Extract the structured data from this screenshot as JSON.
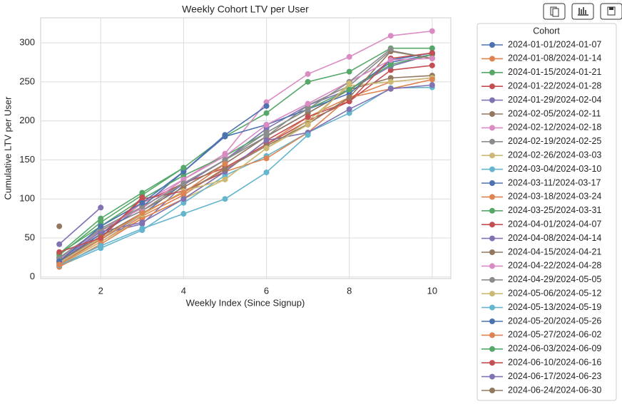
{
  "chart_data": {
    "type": "line",
    "title": "Weekly Cohort LTV per User",
    "x_label": "Weekly Index (Since Signup)",
    "y_label": "Cumulative LTV per User",
    "legend_title": "Cohort",
    "legend_position": "outside right",
    "grid": true,
    "x": [
      1,
      2,
      3,
      4,
      5,
      6,
      7,
      8,
      9,
      10
    ],
    "xlim": [
      0.55,
      10.45
    ],
    "xticks": [
      2,
      4,
      6,
      8,
      10
    ],
    "ylim": [
      -2,
      332
    ],
    "yticks": [
      0,
      50,
      100,
      150,
      200,
      250,
      300
    ],
    "series": [
      {
        "name": "2024-01-01/2024-01-07",
        "color": "#4c72b0",
        "values": [
          18,
          48,
          80,
          120,
          150,
          180,
          210,
          240,
          275,
          285
        ]
      },
      {
        "name": "2024-01-08/2024-01-14",
        "color": "#dd8452",
        "values": [
          15,
          45,
          78,
          105,
          140,
          170,
          205,
          230,
          250,
          255
        ]
      },
      {
        "name": "2024-01-15/2024-01-21",
        "color": "#55a868",
        "values": [
          28,
          70,
          105,
          140,
          180,
          210,
          250,
          263,
          293,
          293
        ]
      },
      {
        "name": "2024-01-22/2024-01-28",
        "color": "#c44e52",
        "values": [
          20,
          55,
          95,
          120,
          140,
          170,
          200,
          225,
          265,
          271
        ]
      },
      {
        "name": "2024-01-29/2024-02-04",
        "color": "#8172b3",
        "values": [
          22,
          55,
          68,
          118,
          150,
          190,
          220,
          240,
          270,
          285
        ]
      },
      {
        "name": "2024-02-05/2024-02-11",
        "color": "#937860",
        "values": [
          25,
          60,
          85,
          115,
          145,
          180,
          210,
          240,
          255,
          258
        ]
      },
      {
        "name": "2024-02-12/2024-02-18",
        "color": "#da8bc3",
        "values": [
          20,
          58,
          95,
          125,
          158,
          224,
          260,
          282,
          309,
          315
        ]
      },
      {
        "name": "2024-02-19/2024-02-25",
        "color": "#8c8c8c",
        "values": [
          24,
          60,
          85,
          120,
          150,
          180,
          220,
          245,
          290,
          280
        ]
      },
      {
        "name": "2024-02-26/2024-03-03",
        "color": "#ccb974",
        "values": [
          16,
          45,
          75,
          100,
          125,
          165,
          200,
          245,
          250,
          255
        ]
      },
      {
        "name": "2024-03-04/2024-03-10",
        "color": "#64b5cd",
        "values": [
          14,
          37,
          60,
          95,
          130,
          155,
          185,
          210,
          242,
          243
        ]
      },
      {
        "name": "2024-03-11/2024-03-17",
        "color": "#4c72b0",
        "values": [
          20,
          55,
          90,
          135,
          180,
          195,
          215,
          235,
          278,
          287
        ]
      },
      {
        "name": "2024-03-18/2024-03-24",
        "color": "#dd8452",
        "values": [
          13,
          42,
          75,
          100,
          135,
          152,
          185,
          230,
          241,
          253
        ]
      },
      {
        "name": "2024-03-25/2024-03-31",
        "color": "#55a868",
        "values": [
          30,
          65,
          100,
          130,
          155,
          185,
          215,
          240,
          272,
          285
        ]
      },
      {
        "name": "2024-04-01/2024-04-07",
        "color": "#c44e52",
        "values": [
          18,
          50,
          100,
          110,
          135,
          175,
          205,
          225,
          280,
          287
        ]
      },
      {
        "name": "2024-04-08/2024-04-14",
        "color": "#8172b3",
        "values": [
          22,
          58,
          70,
          100,
          135,
          175,
          185,
          215,
          241,
          246
        ]
      },
      {
        "name": "2024-04-15/2024-04-21",
        "color": "#937860",
        "values": [
          20,
          52,
          82,
          108,
          138,
          168,
          196,
          230,
          289,
          280
        ]
      },
      {
        "name": "2024-04-22/2024-04-28",
        "color": "#da8bc3",
        "values": [
          22,
          62,
          88,
          125,
          155,
          195,
          222,
          250,
          278,
          280
        ]
      },
      {
        "name": "2024-04-29/2024-05-05",
        "color": "#8c8c8c",
        "values": [
          25,
          62,
          90,
          120,
          150,
          185,
          215,
          250,
          292,
          null
        ]
      },
      {
        "name": "2024-05-06/2024-05-12",
        "color": "#ccb974",
        "values": [
          18,
          50,
          80,
          110,
          125,
          165,
          195,
          248,
          null,
          null
        ]
      },
      {
        "name": "2024-05-13/2024-05-19",
        "color": "#64b5cd",
        "values": [
          15,
          40,
          62,
          81,
          100,
          134,
          182,
          null,
          null,
          null
        ]
      },
      {
        "name": "2024-05-20/2024-05-26",
        "color": "#4c72b0",
        "values": [
          20,
          65,
          95,
          135,
          182,
          219,
          null,
          null,
          null,
          null
        ]
      },
      {
        "name": "2024-05-27/2024-06-02",
        "color": "#dd8452",
        "values": [
          16,
          48,
          82,
          108,
          145,
          null,
          null,
          null,
          null,
          null
        ]
      },
      {
        "name": "2024-06-03/2024-06-09",
        "color": "#55a868",
        "values": [
          30,
          75,
          108,
          140,
          null,
          null,
          null,
          null,
          null,
          null
        ]
      },
      {
        "name": "2024-06-10/2024-06-16",
        "color": "#c44e52",
        "values": [
          32,
          50,
          102,
          null,
          null,
          null,
          null,
          null,
          null,
          null
        ]
      },
      {
        "name": "2024-06-17/2024-06-23",
        "color": "#8172b3",
        "values": [
          42,
          89,
          null,
          null,
          null,
          null,
          null,
          null,
          null,
          null
        ]
      },
      {
        "name": "2024-06-24/2024-06-30",
        "color": "#937860",
        "values": [
          65,
          null,
          null,
          null,
          null,
          null,
          null,
          null,
          null,
          null
        ]
      }
    ]
  }
}
